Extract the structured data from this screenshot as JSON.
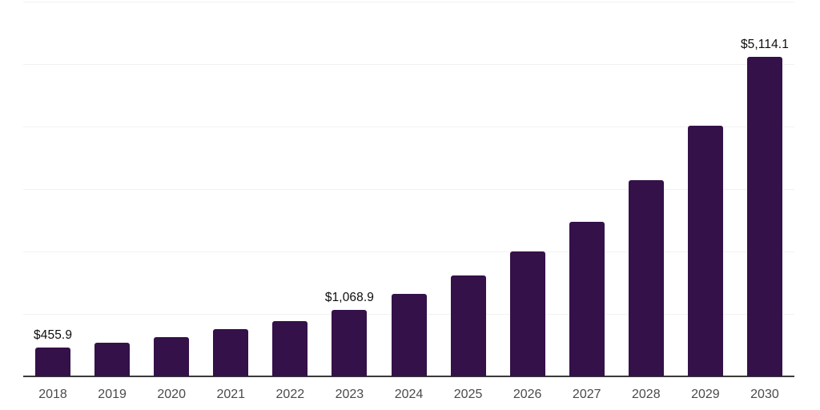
{
  "chart_data": {
    "type": "bar",
    "title": "",
    "xlabel": "",
    "ylabel": "",
    "categories": [
      "2018",
      "2019",
      "2020",
      "2021",
      "2022",
      "2023",
      "2024",
      "2025",
      "2026",
      "2027",
      "2028",
      "2029",
      "2030"
    ],
    "values": [
      455.9,
      540,
      630,
      760,
      890,
      1068.9,
      1320,
      1610,
      2000,
      2480,
      3140,
      4010,
      5114.1
    ],
    "data_labels": {
      "2018": "$455.9",
      "2023": "$1,068.9",
      "2030": "$5,114.1"
    },
    "ylim": [
      0,
      6000
    ],
    "gridline_interval": 1000,
    "grid": true,
    "legend": false,
    "value_unit": "USD"
  },
  "colors": {
    "bar": "#341149",
    "axis": "#3a3a3a",
    "gridline": "#f1f1f1",
    "tick_label": "#4a4a4a",
    "value_label": "#0d0d0d",
    "background": "#ffffff"
  }
}
